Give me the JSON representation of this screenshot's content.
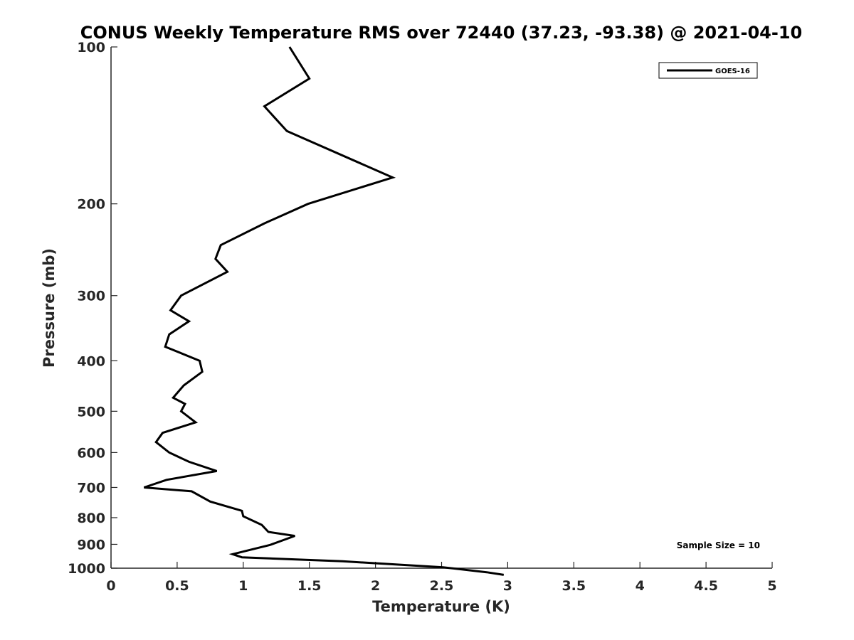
{
  "chart_data": {
    "type": "line",
    "title": "CONUS Weekly Temperature RMS over 72440 (37.23, -93.38) @ 2021-04-10",
    "xlabel": "Temperature (K)",
    "ylabel": "Pressure (mb)",
    "xlim": [
      0,
      5
    ],
    "ylim": [
      1000,
      100
    ],
    "y_scale": "log",
    "y_reversed": true,
    "grid": false,
    "x_ticks": [
      "0",
      "0.5",
      "1",
      "1.5",
      "2",
      "2.5",
      "3",
      "3.5",
      "4",
      "4.5",
      "5"
    ],
    "x_tick_values": [
      0,
      0.5,
      1,
      1.5,
      2,
      2.5,
      3,
      3.5,
      4,
      4.5,
      5
    ],
    "y_ticks": [
      "100",
      "200",
      "300",
      "400",
      "500",
      "600",
      "700",
      "800",
      "900",
      "1000"
    ],
    "y_tick_values": [
      100,
      200,
      300,
      400,
      500,
      600,
      700,
      800,
      900,
      1000
    ],
    "legend_position": "top-right",
    "series": [
      {
        "name": "GOES-16",
        "color": "#000000",
        "x": [
          1.35,
          1.5,
          1.16,
          1.33,
          2.13,
          1.49,
          1.16,
          0.83,
          0.79,
          0.88,
          0.53,
          0.45,
          0.59,
          0.44,
          0.41,
          0.67,
          0.69,
          0.55,
          0.47,
          0.56,
          0.53,
          0.64,
          0.39,
          0.34,
          0.44,
          0.59,
          0.8,
          0.42,
          0.25,
          0.61,
          0.75,
          0.99,
          1.0,
          1.14,
          1.19,
          1.39,
          1.2,
          0.92,
          0.99,
          1.75,
          2.51,
          2.84,
          2.97
        ],
        "y": [
          100,
          115,
          130,
          145,
          178,
          200,
          218,
          240,
          255,
          270,
          300,
          320,
          336,
          356,
          376,
          400,
          420,
          446,
          471,
          484,
          500,
          525,
          550,
          573,
          600,
          625,
          651,
          677,
          700,
          712,
          745,
          776,
          795,
          826,
          852,
          867,
          903,
          940,
          953,
          970,
          996,
          1018,
          1030
        ]
      }
    ],
    "annotations": [
      "Sample Size = 10"
    ]
  }
}
